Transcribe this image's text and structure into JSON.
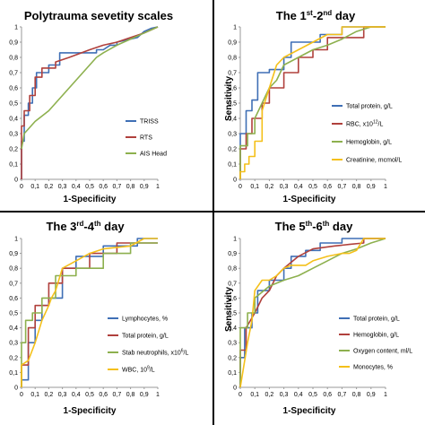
{
  "colors": {
    "blue": "#3F6FB5",
    "red": "#B0403C",
    "green": "#8DB04E",
    "yellow": "#F4C01A",
    "divider": "#000000",
    "axis": "#9a9a9a"
  },
  "y_ticks": [
    "0",
    "0,1",
    "0,2",
    "0,3",
    "0,4",
    "0,5",
    "0,6",
    "0,7",
    "0,8",
    "0,9",
    "1"
  ],
  "x_ticks": [
    "0",
    "0,1",
    "0,2",
    "0,3",
    "0,4",
    "0,5",
    "0,6",
    "0,7",
    "0,8",
    "0,9",
    "1"
  ],
  "chart_data": [
    {
      "type": "line",
      "title": "Polytrauma sevetity scales",
      "xlabel": "1-Specificity",
      "ylabel": "",
      "xlim": [
        0,
        1
      ],
      "ylim": [
        0,
        1
      ],
      "grid": false,
      "legend_position": "bottom-right",
      "series": [
        {
          "name": "TRISS",
          "color": "#3F6FB5",
          "x": [
            0,
            0,
            0.02,
            0.02,
            0.05,
            0.05,
            0.08,
            0.08,
            0.11,
            0.11,
            0.2,
            0.2,
            0.28,
            0.28,
            0.55,
            0.55,
            0.6,
            0.65,
            0.7,
            0.7,
            0.8,
            0.85,
            0.9,
            0.95,
            1
          ],
          "y": [
            0,
            0.25,
            0.25,
            0.42,
            0.42,
            0.5,
            0.5,
            0.6,
            0.6,
            0.7,
            0.7,
            0.75,
            0.75,
            0.83,
            0.83,
            0.85,
            0.85,
            0.88,
            0.88,
            0.9,
            0.92,
            0.93,
            0.97,
            0.99,
            1
          ]
        },
        {
          "name": "RTS",
          "color": "#B0403C",
          "x": [
            0,
            0,
            0.02,
            0.02,
            0.06,
            0.06,
            0.1,
            0.1,
            0.15,
            0.15,
            0.25,
            0.25,
            0.35,
            0.5,
            0.6,
            0.7,
            0.8,
            0.9,
            1
          ],
          "y": [
            0,
            0.35,
            0.35,
            0.45,
            0.45,
            0.55,
            0.55,
            0.67,
            0.67,
            0.73,
            0.73,
            0.77,
            0.8,
            0.85,
            0.88,
            0.9,
            0.93,
            0.96,
            1
          ]
        },
        {
          "name": "AIS Head",
          "color": "#8DB04E",
          "x": [
            0,
            0.02,
            0.1,
            0.2,
            0.3,
            0.35,
            0.4,
            0.45,
            0.5,
            0.55,
            0.6,
            0.7,
            0.8,
            0.9,
            1
          ],
          "y": [
            0.2,
            0.3,
            0.38,
            0.45,
            0.55,
            0.6,
            0.65,
            0.7,
            0.75,
            0.8,
            0.83,
            0.88,
            0.92,
            0.96,
            1
          ]
        }
      ]
    },
    {
      "type": "line",
      "title_main": "The 1",
      "title_sup1": "st",
      "title_mid": "-2",
      "title_sup2": "nd",
      "title_end": " day",
      "xlabel": "1-Specificity",
      "ylabel": "Sensitivity",
      "xlim": [
        0,
        1
      ],
      "ylim": [
        0,
        1
      ],
      "grid": false,
      "legend_position": "bottom-right",
      "series": [
        {
          "name": "Total protein, g/L",
          "color": "#3F6FB5",
          "x": [
            0,
            0,
            0.04,
            0.04,
            0.08,
            0.08,
            0.12,
            0.12,
            0.2,
            0.2,
            0.3,
            0.3,
            0.35,
            0.35,
            0.55,
            0.55,
            0.7,
            0.7,
            1
          ],
          "y": [
            0,
            0.3,
            0.3,
            0.45,
            0.45,
            0.52,
            0.52,
            0.7,
            0.7,
            0.72,
            0.72,
            0.8,
            0.8,
            0.9,
            0.9,
            0.95,
            0.95,
            1,
            1
          ]
        },
        {
          "name_pre": "RBC, x10",
          "name_sup": "12",
          "name_post": "/L",
          "color": "#B0403C",
          "x": [
            0,
            0,
            0.04,
            0.04,
            0.08,
            0.08,
            0.15,
            0.15,
            0.2,
            0.2,
            0.3,
            0.3,
            0.4,
            0.4,
            0.5,
            0.5,
            0.6,
            0.6,
            0.85,
            0.85,
            1
          ],
          "y": [
            0,
            0.2,
            0.2,
            0.3,
            0.3,
            0.4,
            0.4,
            0.5,
            0.5,
            0.6,
            0.6,
            0.7,
            0.7,
            0.8,
            0.8,
            0.85,
            0.85,
            0.93,
            0.93,
            1,
            1
          ]
        },
        {
          "name": "Hemoglobin, g/L",
          "color": "#8DB04E",
          "x": [
            0,
            0,
            0.05,
            0.05,
            0.1,
            0.1,
            0.2,
            0.25,
            0.3,
            0.4,
            0.5,
            0.6,
            0.7,
            0.8,
            0.9,
            1
          ],
          "y": [
            0,
            0.22,
            0.22,
            0.3,
            0.3,
            0.4,
            0.6,
            0.65,
            0.75,
            0.8,
            0.85,
            0.88,
            0.92,
            0.97,
            1,
            1
          ]
        },
        {
          "name": "Creatinine, mcmol/L",
          "color": "#F4C01A",
          "x": [
            0,
            0,
            0.03,
            0.03,
            0.06,
            0.06,
            0.1,
            0.1,
            0.15,
            0.15,
            0.2,
            0.25,
            0.3,
            0.4,
            0.5,
            0.6,
            0.7,
            0.7,
            1
          ],
          "y": [
            0,
            0.05,
            0.05,
            0.1,
            0.1,
            0.15,
            0.15,
            0.25,
            0.25,
            0.45,
            0.6,
            0.75,
            0.8,
            0.85,
            0.9,
            0.95,
            0.95,
            1,
            1
          ]
        }
      ]
    },
    {
      "type": "line",
      "title_main": "The 3",
      "title_sup1": "rd",
      "title_mid": "-4",
      "title_sup2": "th",
      "title_end": " day",
      "xlabel": "1-Specificity",
      "ylabel": "",
      "xlim": [
        0,
        1
      ],
      "ylim": [
        0,
        1
      ],
      "grid": false,
      "legend_position": "bottom-right",
      "series": [
        {
          "name": "Lymphocytes, %",
          "color": "#3F6FB5",
          "x": [
            0,
            0,
            0.05,
            0.05,
            0.1,
            0.1,
            0.15,
            0.15,
            0.2,
            0.2,
            0.3,
            0.3,
            0.4,
            0.4,
            0.6,
            0.6,
            0.85,
            0.85,
            1
          ],
          "y": [
            0,
            0.05,
            0.05,
            0.3,
            0.3,
            0.45,
            0.45,
            0.55,
            0.55,
            0.6,
            0.6,
            0.8,
            0.8,
            0.88,
            0.88,
            0.95,
            0.95,
            1,
            1
          ]
        },
        {
          "name": "Total protein, g/L",
          "color": "#B0403C",
          "x": [
            0,
            0,
            0.05,
            0.05,
            0.1,
            0.1,
            0.2,
            0.2,
            0.3,
            0.3,
            0.5,
            0.5,
            0.7,
            0.7,
            1
          ],
          "y": [
            0,
            0.15,
            0.15,
            0.4,
            0.4,
            0.55,
            0.55,
            0.7,
            0.7,
            0.8,
            0.8,
            0.9,
            0.9,
            0.97,
            0.97
          ]
        },
        {
          "name_pre": "Stab neutrophils, x10",
          "name_sup": "6",
          "name_post": "/L",
          "color": "#8DB04E",
          "x": [
            0,
            0,
            0.03,
            0.03,
            0.08,
            0.08,
            0.15,
            0.15,
            0.25,
            0.25,
            0.4,
            0.4,
            0.6,
            0.6,
            0.8,
            0.8,
            1
          ],
          "y": [
            0,
            0.3,
            0.3,
            0.45,
            0.45,
            0.5,
            0.5,
            0.6,
            0.6,
            0.75,
            0.75,
            0.8,
            0.8,
            0.9,
            0.9,
            0.97,
            0.97
          ]
        },
        {
          "name_pre": "WBC, 10",
          "name_sup": "9",
          "name_post": "/L",
          "color": "#F4C01A",
          "x": [
            0,
            0,
            0.05,
            0.1,
            0.15,
            0.2,
            0.22,
            0.25,
            0.3,
            0.4,
            0.5,
            0.6,
            0.8,
            0.9,
            1
          ],
          "y": [
            0,
            0.15,
            0.18,
            0.3,
            0.45,
            0.55,
            0.6,
            0.65,
            0.8,
            0.85,
            0.9,
            0.93,
            0.95,
            1,
            1
          ]
        }
      ]
    },
    {
      "type": "line",
      "title_main": "The 5",
      "title_sup1": "th",
      "title_mid": "-6",
      "title_sup2": "th",
      "title_end": " day",
      "xlabel": "1-Specificity",
      "ylabel": "Sensitivity",
      "xlim": [
        0,
        1
      ],
      "ylim": [
        0,
        1
      ],
      "grid": false,
      "legend_position": "bottom-right",
      "series": [
        {
          "name": "Total protein, g/L",
          "color": "#3F6FB5",
          "x": [
            0,
            0,
            0.03,
            0.03,
            0.08,
            0.08,
            0.12,
            0.12,
            0.2,
            0.2,
            0.3,
            0.3,
            0.35,
            0.35,
            0.45,
            0.45,
            0.55,
            0.55,
            0.7,
            0.7,
            1
          ],
          "y": [
            0,
            0.2,
            0.2,
            0.4,
            0.4,
            0.5,
            0.5,
            0.65,
            0.65,
            0.72,
            0.72,
            0.8,
            0.8,
            0.88,
            0.88,
            0.92,
            0.92,
            0.97,
            0.97,
            1,
            1
          ]
        },
        {
          "name": "Hemoglobin, g/L",
          "color": "#B0403C",
          "x": [
            0,
            0,
            0.04,
            0.04,
            0.1,
            0.15,
            0.2,
            0.25,
            0.3,
            0.4,
            0.5,
            0.65,
            0.75,
            0.85,
            0.85,
            1
          ],
          "y": [
            0,
            0.25,
            0.25,
            0.4,
            0.5,
            0.6,
            0.65,
            0.75,
            0.8,
            0.88,
            0.93,
            0.95,
            0.96,
            0.97,
            1,
            1
          ]
        },
        {
          "name": "Oxygen content, ml/L",
          "color": "#8DB04E",
          "x": [
            0,
            0,
            0.05,
            0.05,
            0.1,
            0.1,
            0.2,
            0.3,
            0.4,
            0.5,
            0.6,
            0.7,
            0.8,
            0.9,
            1
          ],
          "y": [
            0,
            0.4,
            0.4,
            0.5,
            0.5,
            0.6,
            0.68,
            0.72,
            0.75,
            0.8,
            0.85,
            0.9,
            0.93,
            0.97,
            1
          ]
        },
        {
          "name": "Monocytes, %",
          "color": "#F4C01A",
          "x": [
            0,
            0.03,
            0.05,
            0.08,
            0.1,
            0.15,
            0.2,
            0.25,
            0.3,
            0.35,
            0.45,
            0.5,
            0.6,
            0.7,
            0.75,
            0.8,
            0.85,
            1
          ],
          "y": [
            0,
            0.18,
            0.3,
            0.45,
            0.65,
            0.72,
            0.72,
            0.75,
            0.8,
            0.82,
            0.82,
            0.85,
            0.88,
            0.9,
            0.9,
            0.92,
            1,
            1
          ]
        }
      ]
    }
  ]
}
